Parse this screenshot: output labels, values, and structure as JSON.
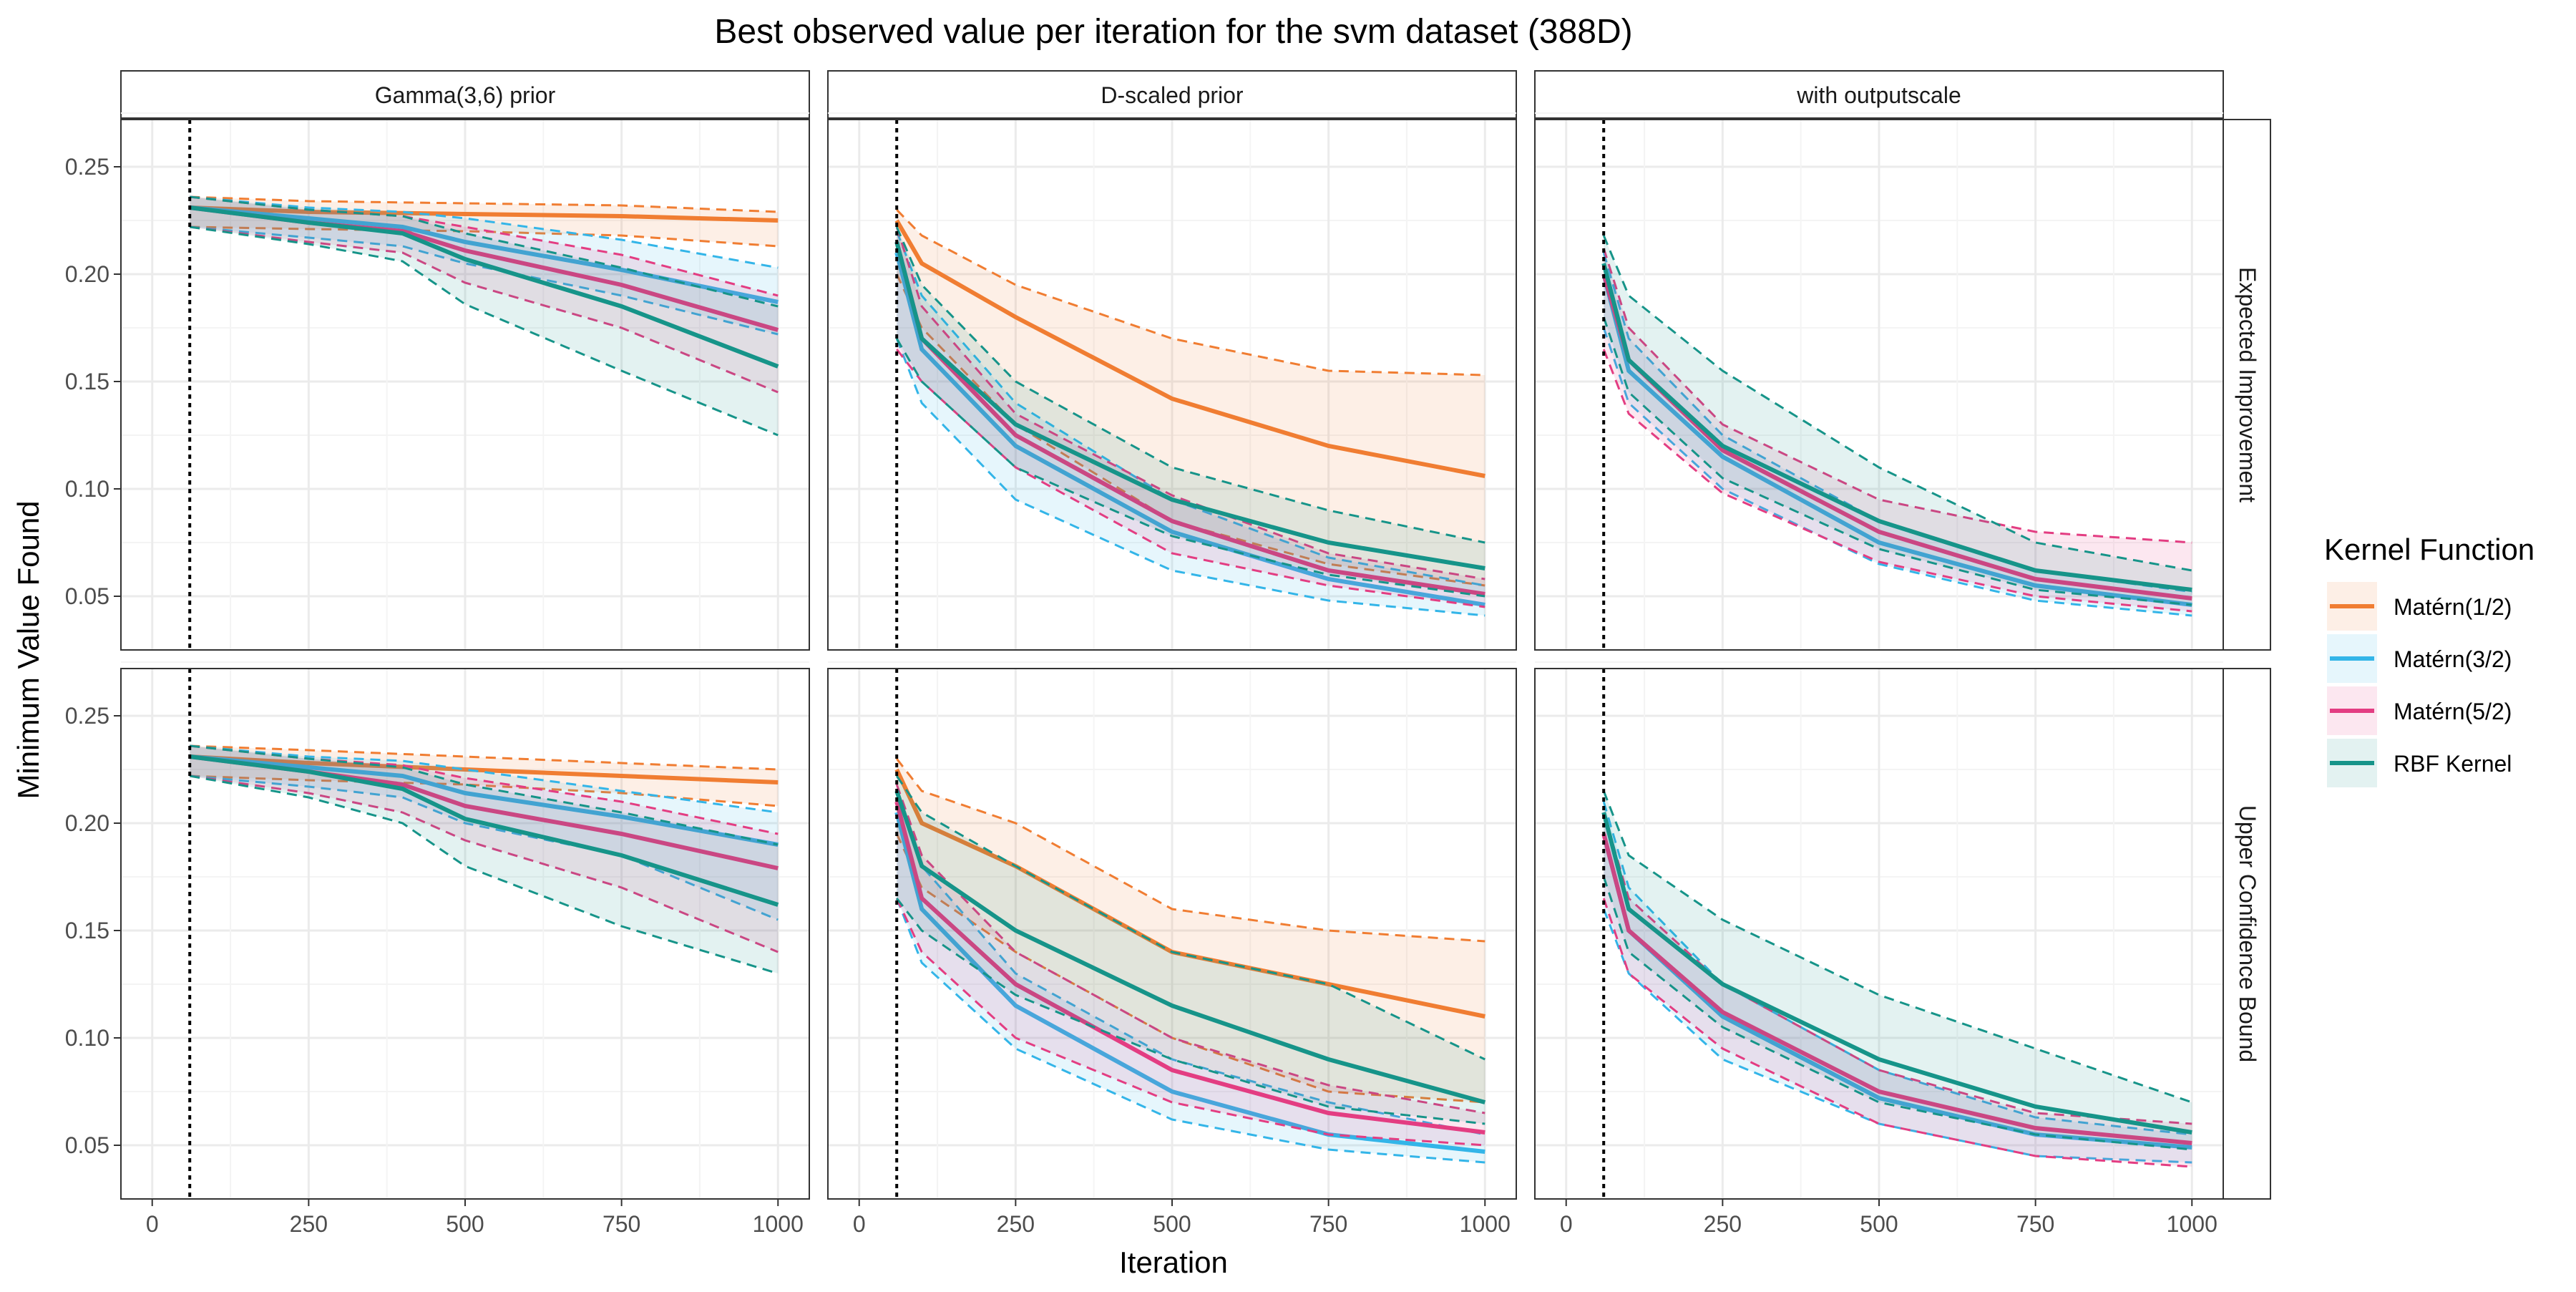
{
  "chart_data": {
    "type": "line",
    "title": "Best observed value per iteration for the svm dataset (388D)",
    "xlabel": "Iteration",
    "ylabel": "Minimum Value Found",
    "xlim": [
      -50,
      1050
    ],
    "ylim": [
      0.025,
      0.272
    ],
    "x_ticks": [
      0,
      250,
      500,
      750,
      1000
    ],
    "y_ticks": [
      0.05,
      0.1,
      0.15,
      0.2,
      0.25
    ],
    "x_tick_labels": [
      "0",
      "250",
      "500",
      "750",
      "1000"
    ],
    "y_tick_labels": [
      "0.05",
      "0.10",
      "0.15",
      "0.20",
      "0.25"
    ],
    "vline_x": 60,
    "grid": true,
    "legend": {
      "title": "Kernel Function",
      "position": "right",
      "entries": [
        "Matérn(1/2)",
        "Matérn(3/2)",
        "Matérn(5/2)",
        "RBF Kernel"
      ]
    },
    "col_facets": [
      "Gamma(3,6) prior",
      "D-scaled prior",
      "with outputscale"
    ],
    "row_facets": [
      "Expected Improvement",
      "Upper Confidence Bound"
    ],
    "colors": {
      "Matérn(1/2)": "#f07d32",
      "Matérn(3/2)": "#33b5e8",
      "Matérn(5/2)": "#e33d82",
      "RBF Kernel": "#169489"
    },
    "panels": [
      {
        "row": "Expected Improvement",
        "col": "Gamma(3,6) prior",
        "series": [
          {
            "name": "Matérn(1/2)",
            "x": [
              60,
              250,
              500,
              750,
              1000
            ],
            "mean": [
              0.231,
              0.229,
              0.228,
              0.227,
              0.225
            ],
            "lower": [
              0.222,
              0.221,
              0.22,
              0.218,
              0.213
            ],
            "upper": [
              0.236,
              0.234,
              0.233,
              0.232,
              0.229
            ]
          },
          {
            "name": "Matérn(3/2)",
            "x": [
              60,
              250,
              400,
              500,
              750,
              1000
            ],
            "mean": [
              0.231,
              0.226,
              0.222,
              0.215,
              0.202,
              0.187
            ],
            "lower": [
              0.222,
              0.217,
              0.213,
              0.205,
              0.19,
              0.172
            ],
            "upper": [
              0.236,
              0.231,
              0.229,
              0.226,
              0.216,
              0.203
            ]
          },
          {
            "name": "Matérn(5/2)",
            "x": [
              60,
              250,
              400,
              500,
              750,
              1000
            ],
            "mean": [
              0.231,
              0.224,
              0.22,
              0.211,
              0.195,
              0.174
            ],
            "lower": [
              0.222,
              0.215,
              0.21,
              0.196,
              0.175,
              0.145
            ],
            "upper": [
              0.236,
              0.23,
              0.227,
              0.222,
              0.209,
              0.19
            ]
          },
          {
            "name": "RBF Kernel",
            "x": [
              60,
              250,
              400,
              500,
              750,
              1000
            ],
            "mean": [
              0.231,
              0.224,
              0.219,
              0.207,
              0.185,
              0.157
            ],
            "lower": [
              0.222,
              0.214,
              0.206,
              0.186,
              0.155,
              0.125
            ],
            "upper": [
              0.236,
              0.23,
              0.227,
              0.219,
              0.203,
              0.185
            ]
          }
        ]
      },
      {
        "row": "Expected Improvement",
        "col": "D-scaled prior",
        "series": [
          {
            "name": "Matérn(1/2)",
            "x": [
              60,
              100,
              250,
              500,
              750,
              1000
            ],
            "mean": [
              0.225,
              0.205,
              0.18,
              0.142,
              0.12,
              0.106
            ],
            "lower": [
              0.2,
              0.175,
              0.13,
              0.085,
              0.065,
              0.055
            ],
            "upper": [
              0.23,
              0.218,
              0.195,
              0.17,
              0.155,
              0.153
            ]
          },
          {
            "name": "Matérn(3/2)",
            "x": [
              60,
              100,
              250,
              500,
              750,
              1000
            ],
            "mean": [
              0.21,
              0.165,
              0.12,
              0.08,
              0.058,
              0.046
            ],
            "lower": [
              0.17,
              0.14,
              0.095,
              0.062,
              0.048,
              0.041
            ],
            "upper": [
              0.22,
              0.19,
              0.14,
              0.095,
              0.068,
              0.055
            ]
          },
          {
            "name": "Matérn(5/2)",
            "x": [
              60,
              100,
              250,
              500,
              750,
              1000
            ],
            "mean": [
              0.215,
              0.17,
              0.125,
              0.085,
              0.062,
              0.051
            ],
            "lower": [
              0.165,
              0.15,
              0.11,
              0.07,
              0.055,
              0.045
            ],
            "upper": [
              0.222,
              0.185,
              0.135,
              0.097,
              0.07,
              0.058
            ]
          },
          {
            "name": "RBF Kernel",
            "x": [
              60,
              100,
              250,
              500,
              750,
              1000
            ],
            "mean": [
              0.215,
              0.17,
              0.13,
              0.095,
              0.075,
              0.063
            ],
            "lower": [
              0.17,
              0.15,
              0.11,
              0.078,
              0.06,
              0.05
            ],
            "upper": [
              0.222,
              0.195,
              0.15,
              0.11,
              0.09,
              0.075
            ]
          }
        ]
      },
      {
        "row": "Expected Improvement",
        "col": "with outputscale",
        "series": [
          {
            "name": "Matérn(3/2)",
            "x": [
              60,
              100,
              250,
              500,
              750,
              1000
            ],
            "mean": [
              0.2,
              0.155,
              0.115,
              0.075,
              0.055,
              0.046
            ],
            "lower": [
              0.175,
              0.14,
              0.1,
              0.065,
              0.048,
              0.041
            ],
            "upper": [
              0.21,
              0.17,
              0.125,
              0.085,
              0.062,
              0.052
            ]
          },
          {
            "name": "Matérn(5/2)",
            "x": [
              60,
              100,
              250,
              500,
              750,
              1000
            ],
            "mean": [
              0.2,
              0.16,
              0.118,
              0.08,
              0.058,
              0.049
            ],
            "lower": [
              0.165,
              0.135,
              0.098,
              0.066,
              0.05,
              0.043
            ],
            "upper": [
              0.212,
              0.175,
              0.13,
              0.095,
              0.08,
              0.075
            ]
          },
          {
            "name": "RBF Kernel",
            "x": [
              60,
              100,
              250,
              500,
              750,
              1000
            ],
            "mean": [
              0.205,
              0.16,
              0.12,
              0.085,
              0.062,
              0.053
            ],
            "lower": [
              0.18,
              0.145,
              0.105,
              0.072,
              0.053,
              0.046
            ],
            "upper": [
              0.218,
              0.19,
              0.155,
              0.11,
              0.075,
              0.062
            ]
          }
        ]
      },
      {
        "row": "Upper Confidence Bound",
        "col": "Gamma(3,6) prior",
        "series": [
          {
            "name": "Matérn(1/2)",
            "x": [
              60,
              250,
              500,
              750,
              1000
            ],
            "mean": [
              0.231,
              0.228,
              0.225,
              0.222,
              0.219
            ],
            "lower": [
              0.222,
              0.22,
              0.218,
              0.214,
              0.208
            ],
            "upper": [
              0.236,
              0.234,
              0.231,
              0.228,
              0.225
            ]
          },
          {
            "name": "Matérn(3/2)",
            "x": [
              60,
              250,
              400,
              500,
              750,
              1000
            ],
            "mean": [
              0.231,
              0.226,
              0.222,
              0.214,
              0.203,
              0.19
            ],
            "lower": [
              0.222,
              0.217,
              0.212,
              0.2,
              0.185,
              0.155
            ],
            "upper": [
              0.236,
              0.231,
              0.229,
              0.225,
              0.215,
              0.205
            ]
          },
          {
            "name": "Matérn(5/2)",
            "x": [
              60,
              250,
              400,
              500,
              750,
              1000
            ],
            "mean": [
              0.231,
              0.224,
              0.218,
              0.208,
              0.195,
              0.179
            ],
            "lower": [
              0.222,
              0.214,
              0.205,
              0.192,
              0.17,
              0.14
            ],
            "upper": [
              0.236,
              0.23,
              0.227,
              0.221,
              0.21,
              0.195
            ]
          },
          {
            "name": "RBF Kernel",
            "x": [
              60,
              250,
              400,
              500,
              750,
              1000
            ],
            "mean": [
              0.231,
              0.224,
              0.216,
              0.202,
              0.185,
              0.162
            ],
            "lower": [
              0.222,
              0.212,
              0.2,
              0.18,
              0.152,
              0.13
            ],
            "upper": [
              0.236,
              0.23,
              0.226,
              0.218,
              0.205,
              0.19
            ]
          }
        ]
      },
      {
        "row": "Upper Confidence Bound",
        "col": "D-scaled prior",
        "series": [
          {
            "name": "Matérn(1/2)",
            "x": [
              60,
              100,
              250,
              500,
              750,
              1000
            ],
            "mean": [
              0.225,
              0.2,
              0.18,
              0.14,
              0.125,
              0.11
            ],
            "lower": [
              0.195,
              0.17,
              0.14,
              0.1,
              0.075,
              0.07
            ],
            "upper": [
              0.23,
              0.215,
              0.2,
              0.16,
              0.15,
              0.145
            ]
          },
          {
            "name": "Matérn(3/2)",
            "x": [
              60,
              100,
              250,
              500,
              750,
              1000
            ],
            "mean": [
              0.205,
              0.16,
              0.115,
              0.075,
              0.055,
              0.047
            ],
            "lower": [
              0.165,
              0.135,
              0.095,
              0.062,
              0.048,
              0.042
            ],
            "upper": [
              0.215,
              0.18,
              0.13,
              0.09,
              0.07,
              0.055
            ]
          },
          {
            "name": "Matérn(5/2)",
            "x": [
              60,
              100,
              250,
              500,
              750,
              1000
            ],
            "mean": [
              0.21,
              0.165,
              0.125,
              0.085,
              0.065,
              0.056
            ],
            "lower": [
              0.165,
              0.14,
              0.1,
              0.07,
              0.055,
              0.05
            ],
            "upper": [
              0.218,
              0.185,
              0.14,
              0.1,
              0.078,
              0.065
            ]
          },
          {
            "name": "RBF Kernel",
            "x": [
              60,
              100,
              250,
              500,
              750,
              1000
            ],
            "mean": [
              0.215,
              0.18,
              0.15,
              0.115,
              0.09,
              0.07
            ],
            "lower": [
              0.165,
              0.15,
              0.12,
              0.09,
              0.068,
              0.06
            ],
            "upper": [
              0.222,
              0.205,
              0.18,
              0.14,
              0.125,
              0.09
            ]
          }
        ]
      },
      {
        "row": "Upper Confidence Bound",
        "col": "with outputscale",
        "series": [
          {
            "name": "Matérn(3/2)",
            "x": [
              60,
              100,
              250,
              500,
              750,
              1000
            ],
            "mean": [
              0.195,
              0.15,
              0.11,
              0.072,
              0.055,
              0.049
            ],
            "lower": [
              0.16,
              0.13,
              0.09,
              0.06,
              0.045,
              0.042
            ],
            "upper": [
              0.21,
              0.17,
              0.125,
              0.085,
              0.063,
              0.055
            ]
          },
          {
            "name": "Matérn(5/2)",
            "x": [
              60,
              100,
              250,
              500,
              750,
              1000
            ],
            "mean": [
              0.195,
              0.15,
              0.112,
              0.075,
              0.058,
              0.051
            ],
            "lower": [
              0.165,
              0.13,
              0.095,
              0.06,
              0.045,
              0.04
            ],
            "upper": [
              0.205,
              0.165,
              0.125,
              0.085,
              0.065,
              0.06
            ]
          },
          {
            "name": "RBF Kernel",
            "x": [
              60,
              100,
              250,
              500,
              750,
              1000
            ],
            "mean": [
              0.205,
              0.16,
              0.125,
              0.09,
              0.068,
              0.056
            ],
            "lower": [
              0.175,
              0.14,
              0.105,
              0.07,
              0.055,
              0.048
            ],
            "upper": [
              0.215,
              0.185,
              0.155,
              0.12,
              0.095,
              0.07
            ]
          }
        ]
      }
    ]
  }
}
